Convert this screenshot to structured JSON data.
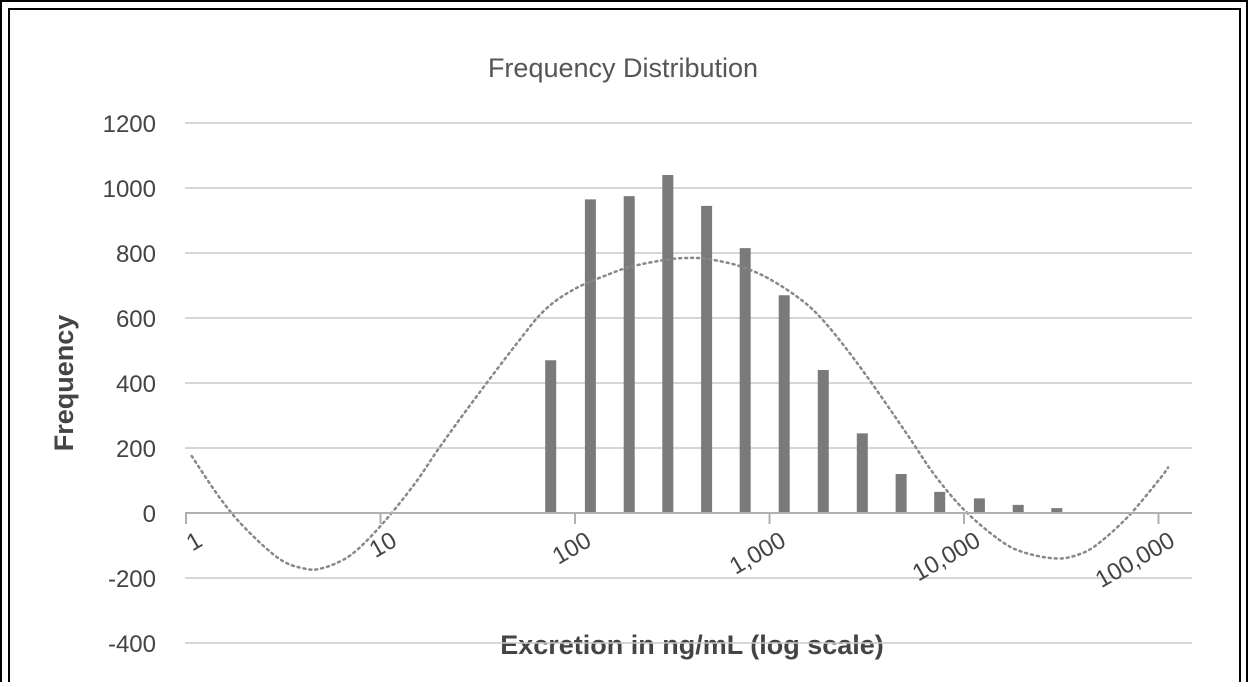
{
  "chart_data": {
    "type": "bar",
    "title": "Frequency Distribution",
    "xlabel": "Excretion in ng/mL (log scale)",
    "ylabel": "Frequency",
    "x_scale": "log",
    "xlim": [
      1,
      100000
    ],
    "ylim": [
      -400,
      1200
    ],
    "y_ticks": [
      -400,
      -200,
      0,
      200,
      400,
      600,
      800,
      1000,
      1200
    ],
    "x_ticks": [
      {
        "value": 1,
        "label": "1"
      },
      {
        "value": 10,
        "label": "10"
      },
      {
        "value": 100,
        "label": "100"
      },
      {
        "value": 1000,
        "label": "1,000"
      },
      {
        "value": 10000,
        "label": "10,000"
      },
      {
        "value": 100000,
        "label": "100,000"
      }
    ],
    "grid": true,
    "legend": "none",
    "series": [
      {
        "type": "bar",
        "color": "#7a7a7a",
        "x": [
          75,
          120,
          190,
          300,
          475,
          750,
          1190,
          1890,
          3000,
          4750,
          7500,
          12000,
          19000,
          30000
        ],
        "values": [
          470,
          965,
          975,
          1040,
          945,
          815,
          670,
          440,
          245,
          120,
          65,
          45,
          25,
          15
        ]
      },
      {
        "type": "line",
        "style": "dotted",
        "color": "#888888",
        "x": [
          1.07,
          1.5,
          2,
          3,
          4,
          5,
          7,
          10,
          15,
          20,
          30,
          50,
          70,
          100,
          150,
          200,
          300,
          400,
          500,
          700,
          1000,
          1500,
          2000,
          3000,
          5000,
          7000,
          10000,
          15000,
          20000,
          30000,
          40000,
          50000,
          70000,
          100000,
          112000
        ],
        "values": [
          175,
          45,
          -45,
          -140,
          -170,
          -170,
          -130,
          -40,
          90,
          200,
          345,
          520,
          625,
          690,
          735,
          760,
          780,
          785,
          780,
          760,
          720,
          650,
          575,
          440,
          250,
          120,
          10,
          -80,
          -120,
          -140,
          -125,
          -90,
          -10,
          100,
          140
        ]
      }
    ]
  }
}
